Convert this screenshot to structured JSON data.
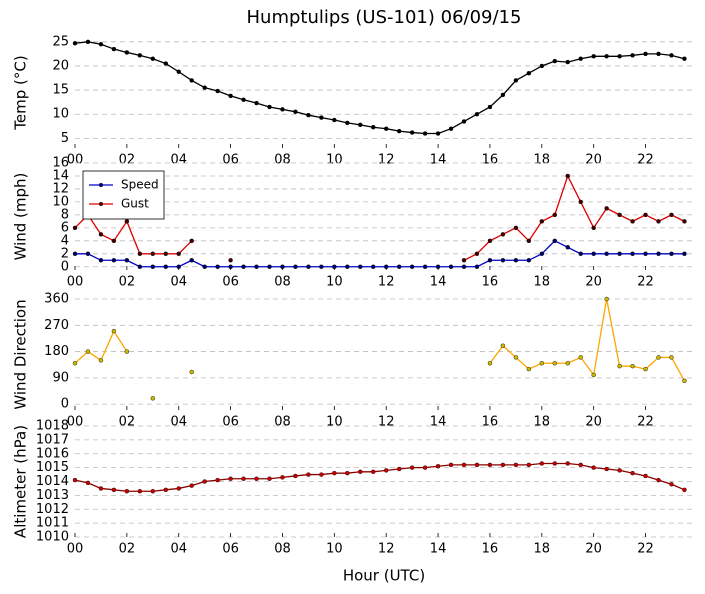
{
  "chart_data": [
    {
      "type": "line",
      "title": "Humptulips (US-101) 06/09/15",
      "y_label": "Temp (°C)",
      "x": [
        0,
        0.5,
        1,
        1.5,
        2,
        2.5,
        3,
        3.5,
        4,
        4.5,
        5,
        5.5,
        6,
        6.5,
        7,
        7.5,
        8,
        8.5,
        9,
        9.5,
        10,
        10.5,
        11,
        11.5,
        12,
        12.5,
        13,
        13.5,
        14,
        14.5,
        15,
        15.5,
        16,
        16.5,
        17,
        17.5,
        18,
        18.5,
        19,
        19.5,
        20,
        20.5,
        21,
        21.5,
        22,
        22.5,
        23,
        23.5
      ],
      "series": [
        {
          "color": "#000000",
          "marker_color": "#000000",
          "values": [
            24.7,
            25,
            24.5,
            23.5,
            22.8,
            22.2,
            21.5,
            20.5,
            18.8,
            17,
            15.5,
            14.8,
            13.8,
            13,
            12.3,
            11.5,
            11,
            10.5,
            9.8,
            9.3,
            8.8,
            8.2,
            7.8,
            7.3,
            7,
            6.5,
            6.2,
            6,
            6,
            7,
            8.5,
            10,
            11.5,
            14,
            17,
            18.5,
            20,
            21,
            20.8,
            21.5,
            22,
            22,
            22,
            22.2,
            22.5,
            22.5,
            22.2,
            21.5
          ]
        }
      ],
      "xlim": [
        0,
        23.83
      ],
      "xticks": [
        {
          "value": 0,
          "label": "00"
        },
        {
          "value": 2,
          "label": "02"
        },
        {
          "value": 4,
          "label": "04"
        },
        {
          "value": 6,
          "label": "06"
        },
        {
          "value": 8,
          "label": "08"
        },
        {
          "value": 10,
          "label": "10"
        },
        {
          "value": 12,
          "label": "12"
        },
        {
          "value": 14,
          "label": "14"
        },
        {
          "value": 16,
          "label": "16"
        },
        {
          "value": 18,
          "label": "18"
        },
        {
          "value": 20,
          "label": "20"
        },
        {
          "value": 22,
          "label": "22"
        }
      ],
      "ylim": [
        3,
        26
      ],
      "yticks": [
        5,
        10,
        15,
        20,
        25
      ],
      "grid": true
    },
    {
      "type": "line",
      "y_label": "Wind (mph)",
      "legend": "upper left",
      "x": [
        0,
        0.5,
        1,
        1.5,
        2,
        2.5,
        3,
        3.5,
        4,
        4.5,
        5,
        5.5,
        6,
        6.5,
        7,
        7.5,
        8,
        8.5,
        9,
        9.5,
        10,
        10.5,
        11,
        11.5,
        12,
        12.5,
        13,
        13.5,
        14,
        14.5,
        15,
        15.5,
        16,
        16.5,
        17,
        17.5,
        18,
        18.5,
        19,
        19.5,
        20,
        20.5,
        21,
        21.5,
        22,
        22.5,
        23,
        23.5
      ],
      "series": [
        {
          "name": "Speed",
          "color": "#0000cc",
          "marker_color": "#000066",
          "values": [
            2,
            2,
            1,
            1,
            1,
            0,
            0,
            0,
            0,
            1,
            0,
            0,
            0,
            0,
            0,
            0,
            0,
            0,
            0,
            0,
            0,
            0,
            0,
            0,
            0,
            0,
            0,
            0,
            0,
            0,
            0,
            0,
            1,
            1,
            1,
            1,
            2,
            4,
            3,
            2,
            2,
            2,
            2,
            2,
            2,
            2,
            2,
            2
          ]
        },
        {
          "name": "Gust",
          "color": "#dd0000",
          "marker_color": "#440000",
          "values": [
            6,
            8,
            5,
            4,
            7,
            2,
            2,
            2,
            2,
            4,
            null,
            null,
            1,
            null,
            null,
            null,
            null,
            null,
            null,
            null,
            null,
            null,
            null,
            null,
            null,
            null,
            null,
            null,
            null,
            null,
            1,
            2,
            4,
            5,
            6,
            4,
            7,
            8,
            14,
            10,
            6,
            9,
            8,
            7,
            8,
            7,
            8,
            7
          ]
        }
      ],
      "xlim": [
        0,
        23.83
      ],
      "xticks": [
        {
          "value": 0,
          "label": "00"
        },
        {
          "value": 2,
          "label": "02"
        },
        {
          "value": 4,
          "label": "04"
        },
        {
          "value": 6,
          "label": "06"
        },
        {
          "value": 8,
          "label": "08"
        },
        {
          "value": 10,
          "label": "10"
        },
        {
          "value": 12,
          "label": "12"
        },
        {
          "value": 14,
          "label": "14"
        },
        {
          "value": 16,
          "label": "16"
        },
        {
          "value": 18,
          "label": "18"
        },
        {
          "value": 20,
          "label": "20"
        },
        {
          "value": 22,
          "label": "22"
        }
      ],
      "ylim": [
        -0.5,
        16
      ],
      "yticks": [
        0,
        2,
        4,
        6,
        8,
        10,
        12,
        14,
        16
      ],
      "grid": true
    },
    {
      "type": "line",
      "y_label": "Wind Direction",
      "x": [
        0,
        0.5,
        1,
        1.5,
        2,
        2.5,
        3,
        3.5,
        4,
        4.5,
        5,
        5.5,
        6,
        6.5,
        7,
        7.5,
        8,
        8.5,
        9,
        9.5,
        10,
        10.5,
        11,
        11.5,
        12,
        12.5,
        13,
        13.5,
        14,
        14.5,
        15,
        15.5,
        16,
        16.5,
        17,
        17.5,
        18,
        18.5,
        19,
        19.5,
        20,
        20.5,
        21,
        21.5,
        22,
        22.5,
        23,
        23.5
      ],
      "series": [
        {
          "color": "#ffa500",
          "marker_color": "#ccbb00",
          "values": [
            140,
            180,
            150,
            250,
            180,
            null,
            20,
            null,
            null,
            110,
            null,
            null,
            null,
            null,
            null,
            null,
            null,
            null,
            null,
            null,
            null,
            null,
            null,
            null,
            null,
            null,
            null,
            null,
            null,
            null,
            null,
            null,
            140,
            200,
            160,
            120,
            140,
            140,
            140,
            160,
            100,
            360,
            130,
            130,
            120,
            160,
            160,
            80
          ]
        }
      ],
      "xlim": [
        0,
        23.83
      ],
      "xticks": [
        {
          "value": 0,
          "label": "00"
        },
        {
          "value": 2,
          "label": "02"
        },
        {
          "value": 4,
          "label": "04"
        },
        {
          "value": 6,
          "label": "06"
        },
        {
          "value": 8,
          "label": "08"
        },
        {
          "value": 10,
          "label": "10"
        },
        {
          "value": 12,
          "label": "12"
        },
        {
          "value": 14,
          "label": "14"
        },
        {
          "value": 16,
          "label": "16"
        },
        {
          "value": 18,
          "label": "18"
        },
        {
          "value": 20,
          "label": "20"
        },
        {
          "value": 22,
          "label": "22"
        }
      ],
      "ylim": [
        -20,
        360
      ],
      "yticks": [
        0,
        90,
        180,
        270,
        360
      ],
      "grid": true
    },
    {
      "type": "line",
      "y_label": "Altimeter (hPa)",
      "x_label": "Hour (UTC)",
      "x": [
        0,
        0.5,
        1,
        1.5,
        2,
        2.5,
        3,
        3.5,
        4,
        4.5,
        5,
        5.5,
        6,
        6.5,
        7,
        7.5,
        8,
        8.5,
        9,
        9.5,
        10,
        10.5,
        11,
        11.5,
        12,
        12.5,
        13,
        13.5,
        14,
        14.5,
        15,
        15.5,
        16,
        16.5,
        17,
        17.5,
        18,
        18.5,
        19,
        19.5,
        20,
        20.5,
        21,
        21.5,
        22,
        22.5,
        23,
        23.5
      ],
      "series": [
        {
          "color": "#8b0000",
          "marker_color": "#cc0000",
          "values": [
            1014.1,
            1013.9,
            1013.5,
            1013.4,
            1013.3,
            1013.3,
            1013.3,
            1013.4,
            1013.5,
            1013.7,
            1014.0,
            1014.1,
            1014.2,
            1014.2,
            1014.2,
            1014.2,
            1014.3,
            1014.4,
            1014.5,
            1014.5,
            1014.6,
            1014.6,
            1014.7,
            1014.7,
            1014.8,
            1014.9,
            1015.0,
            1015.0,
            1015.1,
            1015.2,
            1015.2,
            1015.2,
            1015.2,
            1015.2,
            1015.2,
            1015.2,
            1015.3,
            1015.3,
            1015.3,
            1015.2,
            1015.0,
            1014.9,
            1014.8,
            1014.6,
            1014.4,
            1014.1,
            1013.8,
            1013.4
          ]
        }
      ],
      "xlim": [
        0,
        23.83
      ],
      "xticks": [
        {
          "value": 0,
          "label": "00"
        },
        {
          "value": 2,
          "label": "02"
        },
        {
          "value": 4,
          "label": "04"
        },
        {
          "value": 6,
          "label": "06"
        },
        {
          "value": 8,
          "label": "08"
        },
        {
          "value": 10,
          "label": "10"
        },
        {
          "value": 12,
          "label": "12"
        },
        {
          "value": 14,
          "label": "14"
        },
        {
          "value": 16,
          "label": "16"
        },
        {
          "value": 18,
          "label": "18"
        },
        {
          "value": 20,
          "label": "20"
        },
        {
          "value": 22,
          "label": "22"
        }
      ],
      "ylim": [
        1010,
        1018
      ],
      "yticks": [
        1010,
        1011,
        1012,
        1013,
        1014,
        1015,
        1016,
        1017,
        1018
      ],
      "grid": true
    }
  ]
}
